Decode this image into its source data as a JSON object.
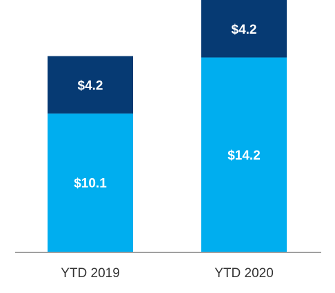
{
  "chart_data": {
    "type": "bar",
    "stacked": true,
    "title": "",
    "xlabel": "",
    "ylabel": "",
    "ylim": [
      0,
      18.4
    ],
    "grid": false,
    "legend": "none",
    "categories": [
      "YTD 2019",
      "YTD 2020"
    ],
    "series": [
      {
        "values": [
          10.1,
          14.2
        ],
        "labels": [
          "$10.1",
          "$14.2"
        ],
        "color": "#00AEEF"
      },
      {
        "values": [
          4.2,
          4.2
        ],
        "labels": [
          "$4.2",
          "$4.2"
        ],
        "color": "#063A73"
      }
    ],
    "axis_color": "#808080",
    "label_color": "#ffffff",
    "category_label_color": "#333333"
  }
}
